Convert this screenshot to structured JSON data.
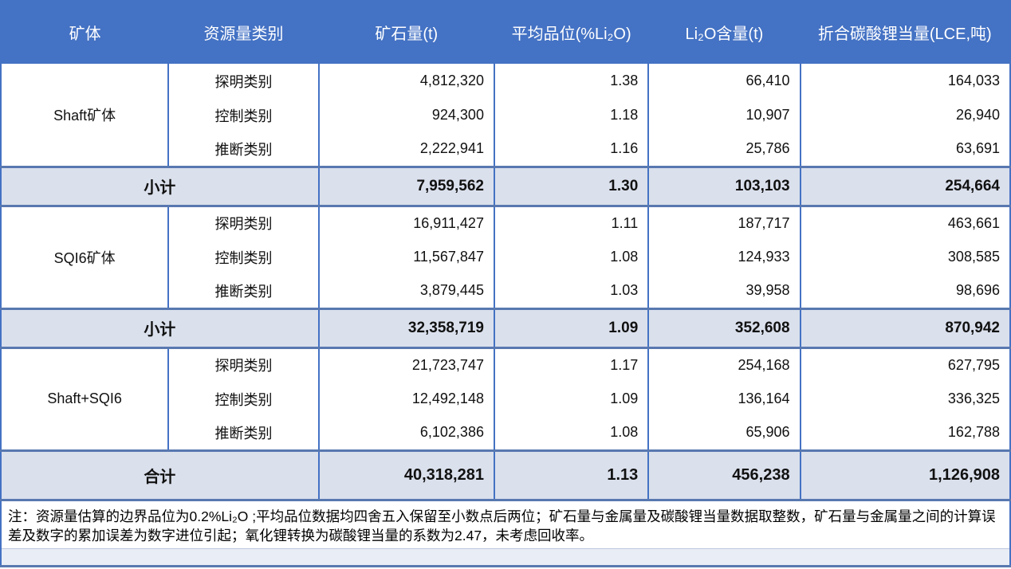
{
  "table": {
    "header": {
      "orebody": "矿体",
      "category": "资源量类别",
      "ore_tonnage": "矿石量(t)",
      "avg_grade": "平均品位(%Li₂O)",
      "li2o_content": "Li₂O含量(t)",
      "lce": "折合碳酸锂当量(LCE,吨)"
    },
    "groups": [
      {
        "name": "Shaft矿体",
        "rows": [
          {
            "category": "探明类别",
            "ore": "4,812,320",
            "grade": "1.38",
            "li2o": "66,410",
            "lce": "164,033"
          },
          {
            "category": "控制类别",
            "ore": "924,300",
            "grade": "1.18",
            "li2o": "10,907",
            "lce": "26,940"
          },
          {
            "category": "推断类别",
            "ore": "2,222,941",
            "grade": "1.16",
            "li2o": "25,786",
            "lce": "63,691"
          }
        ],
        "subtotal": {
          "label": "小计",
          "ore": "7,959,562",
          "grade": "1.30",
          "li2o": "103,103",
          "lce": "254,664"
        }
      },
      {
        "name": "SQI6矿体",
        "rows": [
          {
            "category": "探明类别",
            "ore": "16,911,427",
            "grade": "1.11",
            "li2o": "187,717",
            "lce": "463,661"
          },
          {
            "category": "控制类别",
            "ore": "11,567,847",
            "grade": "1.08",
            "li2o": "124,933",
            "lce": "308,585"
          },
          {
            "category": "推断类别",
            "ore": "3,879,445",
            "grade": "1.03",
            "li2o": "39,958",
            "lce": "98,696"
          }
        ],
        "subtotal": {
          "label": "小计",
          "ore": "32,358,719",
          "grade": "1.09",
          "li2o": "352,608",
          "lce": "870,942"
        }
      },
      {
        "name": "Shaft+SQI6",
        "rows": [
          {
            "category": "探明类别",
            "ore": "21,723,747",
            "grade": "1.17",
            "li2o": "254,168",
            "lce": "627,795"
          },
          {
            "category": "控制类别",
            "ore": "12,492,148",
            "grade": "1.09",
            "li2o": "136,164",
            "lce": "336,325"
          },
          {
            "category": "推断类别",
            "ore": "6,102,386",
            "grade": "1.08",
            "li2o": "65,906",
            "lce": "162,788"
          }
        ]
      }
    ],
    "total": {
      "label": "合计",
      "ore": "40,318,281",
      "grade": "1.13",
      "li2o": "456,238",
      "lce": "1,126,908"
    },
    "note": "注：资源量估算的边界品位为0.2%Li₂O ;平均品位数据均四舍五入保留至小数点后两位；矿石量与金属量及碳酸锂当量数据取整数，矿石量与金属量之间的计算误差及数字的累加误差为数字进位引起；氧化锂转换为碳酸锂当量的系数为2.47，未考虑回收率。"
  },
  "colors": {
    "header_bg": "#4472C4",
    "header_text": "#FFFFFF",
    "subtotal_bg": "#DAE0EC",
    "grid_border": "#4472C4",
    "heavy_border": "#5878B0",
    "bottom_strip_bg": "#E9EDF5"
  }
}
